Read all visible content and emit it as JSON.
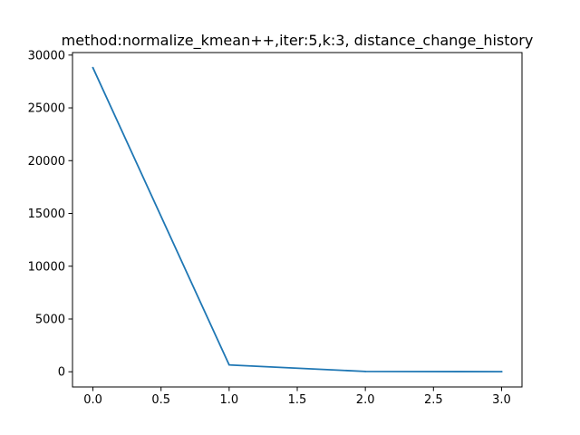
{
  "chart_data": {
    "type": "line",
    "title": "method:normalize_kmean++,iter:5,k:3, distance_change_history",
    "xlabel": "",
    "ylabel": "",
    "xlim": [
      -0.15,
      3.15
    ],
    "ylim": [
      -1440,
      30240
    ],
    "xticks": [
      0.0,
      0.5,
      1.0,
      1.5,
      2.0,
      2.5,
      3.0
    ],
    "xtick_labels": [
      "0.0",
      "0.5",
      "1.0",
      "1.5",
      "2.0",
      "2.5",
      "3.0"
    ],
    "yticks": [
      0,
      5000,
      10000,
      15000,
      20000,
      25000,
      30000
    ],
    "ytick_labels": [
      "0",
      "5000",
      "10000",
      "15000",
      "20000",
      "25000",
      "30000"
    ],
    "grid": false,
    "legend": "none",
    "series": [
      {
        "color": "#1f77b4",
        "x": [
          0,
          1,
          2,
          3
        ],
        "y": [
          28800,
          650,
          30,
          10
        ]
      }
    ]
  }
}
